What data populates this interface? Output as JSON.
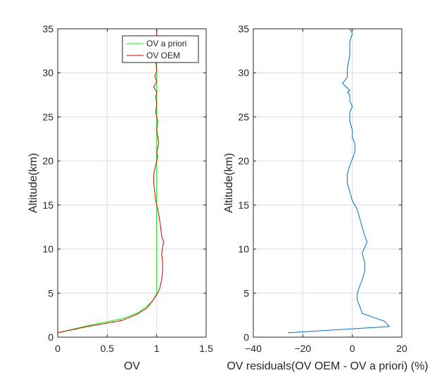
{
  "chart_data": [
    {
      "type": "line",
      "xlabel": "OV",
      "ylabel": "Altitude(km)",
      "xlim": [
        0,
        1.5
      ],
      "ylim": [
        0,
        35
      ],
      "xticks": [
        0,
        0.5,
        1,
        1.5
      ],
      "xtick_labels": [
        "0",
        "0.5",
        "1",
        "1.5"
      ],
      "yticks": [
        0,
        5,
        10,
        15,
        20,
        25,
        30,
        35
      ],
      "ytick_labels": [
        "0",
        "5",
        "10",
        "15",
        "20",
        "25",
        "30",
        "35"
      ],
      "grid": true,
      "legend": "top-right",
      "series": [
        {
          "name": "OV a priori",
          "color": "#00ff00",
          "x": [
            0.0,
            0.3,
            0.65,
            0.8,
            0.9,
            0.95,
            0.98,
            1.0,
            1.0,
            1.0,
            1.0,
            1.0,
            1.0,
            1.0,
            1.0,
            1.0,
            1.0,
            1.0,
            1.0
          ],
          "y": [
            0.5,
            1.3,
            2.1,
            2.7,
            3.5,
            4.0,
            4.5,
            5.0,
            6,
            8,
            10,
            12,
            15,
            18,
            20,
            25,
            28,
            30,
            35
          ]
        },
        {
          "name": "OV OEM",
          "color": "#d00000",
          "x": [
            0.0,
            0.3,
            0.65,
            0.8,
            0.9,
            0.95,
            1.0,
            1.03,
            1.05,
            1.06,
            1.06,
            1.05,
            1.07,
            1.05,
            1.04,
            1.02,
            1.0,
            0.99,
            0.98,
            0.97,
            0.97,
            0.99,
            1.01,
            1.0,
            1.02,
            1.01,
            1.0,
            1.01,
            0.99,
            1.0,
            0.99,
            1.0,
            0.97,
            1.0,
            0.98,
            1.0,
            0.99,
            1.0,
            1.0
          ],
          "y": [
            0.5,
            1.2,
            1.9,
            2.6,
            3.3,
            4.0,
            4.8,
            5.5,
            6.5,
            7.5,
            8.5,
            9.5,
            10.8,
            11.5,
            12.5,
            14.0,
            15.0,
            15.5,
            16.5,
            17.5,
            18.5,
            19.5,
            20.5,
            21.0,
            22.0,
            22.8,
            23.5,
            24.5,
            25.5,
            26.5,
            27.2,
            27.8,
            28.4,
            29.0,
            29.6,
            30.2,
            31.5,
            33.0,
            35.0
          ]
        }
      ]
    },
    {
      "type": "line",
      "xlabel": "OV residuals(OV OEM - OV a priori) (%)",
      "ylabel": "Altitude(km)",
      "xlim": [
        -40,
        20
      ],
      "ylim": [
        0,
        35
      ],
      "xticks": [
        -40,
        -20,
        0,
        20
      ],
      "xtick_labels": [
        "−40",
        "−20",
        "0",
        "20"
      ],
      "yticks": [
        0,
        5,
        10,
        15,
        20,
        25,
        30,
        35
      ],
      "ytick_labels": [
        "0",
        "5",
        "10",
        "15",
        "20",
        "25",
        "30",
        "35"
      ],
      "grid": true,
      "series": [
        {
          "color": "#0072bd",
          "x": [
            -26,
            15,
            13,
            8,
            4,
            3,
            2,
            2,
            3,
            4,
            5,
            5,
            4,
            5,
            6,
            5,
            4,
            3,
            2,
            0,
            -1,
            -2,
            -2,
            -1,
            0,
            1,
            1,
            0,
            0,
            -1,
            -1,
            0,
            -1,
            -1,
            -1,
            -2,
            -1,
            -2,
            -4,
            -2,
            -2,
            -1,
            -1,
            0,
            -1
          ],
          "y": [
            0.5,
            1.2,
            1.8,
            2.3,
            2.7,
            3.5,
            4.2,
            5.0,
            5.8,
            6.5,
            7.5,
            8.5,
            9.5,
            10.2,
            10.8,
            11.5,
            12.5,
            13.5,
            14.5,
            15.5,
            16.5,
            17.5,
            18.5,
            19.5,
            20.2,
            21.0,
            22.0,
            22.7,
            23.5,
            24.5,
            25.5,
            26.2,
            26.8,
            27.2,
            27.5,
            27.8,
            28.0,
            28.3,
            28.8,
            29.5,
            30.5,
            32.0,
            33.5,
            34.5,
            35.0
          ]
        }
      ]
    }
  ]
}
